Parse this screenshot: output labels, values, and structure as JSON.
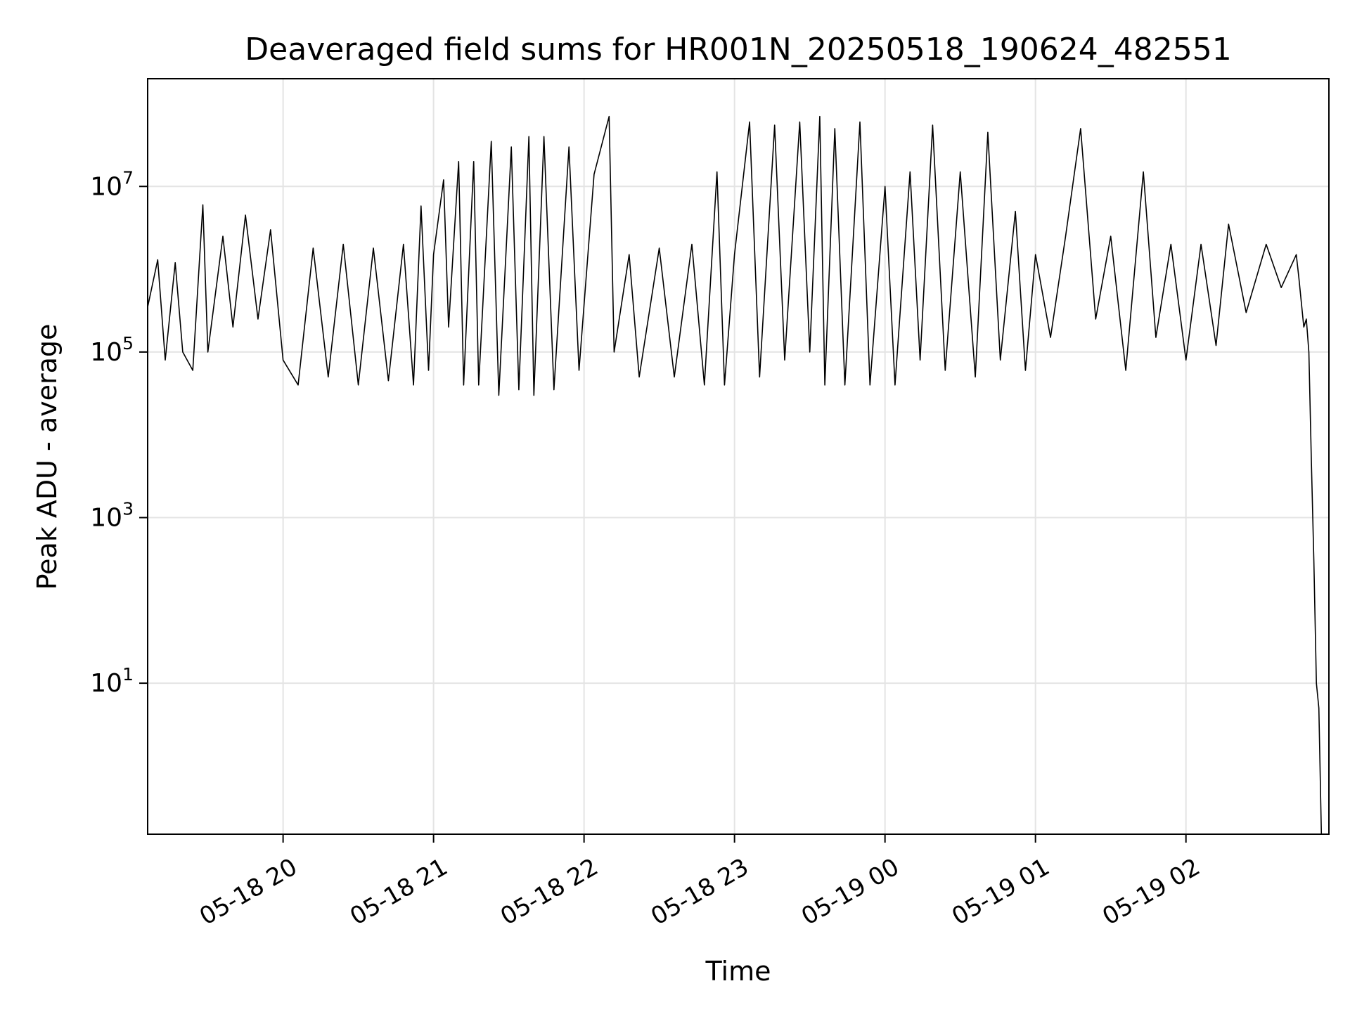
{
  "chart_data": {
    "type": "line",
    "title": "Deaveraged field sums for HR001N_20250518_190624_482551",
    "xlabel": "Time",
    "ylabel": "Peak ADU - average",
    "xlim": [
      "2025-05-18 19:06",
      "2025-05-19 02:57"
    ],
    "ylim": [
      0.15,
      200000000
    ],
    "yscale": "log",
    "grid": true,
    "legend": "none",
    "line_color": "#000000",
    "x_ticks": [
      {
        "label": "05-18 20",
        "value": "2025-05-18 20:00"
      },
      {
        "label": "05-18 21",
        "value": "2025-05-18 21:00"
      },
      {
        "label": "05-18 22",
        "value": "2025-05-18 22:00"
      },
      {
        "label": "05-18 23",
        "value": "2025-05-18 23:00"
      },
      {
        "label": "05-19 00",
        "value": "2025-05-19 00:00"
      },
      {
        "label": "05-19 01",
        "value": "2025-05-19 01:00"
      },
      {
        "label": "05-19 02",
        "value": "2025-05-19 02:00"
      }
    ],
    "y_ticks": [
      {
        "base": "10",
        "exp": "1",
        "value": 10
      },
      {
        "base": "10",
        "exp": "3",
        "value": 1000
      },
      {
        "base": "10",
        "exp": "5",
        "value": 100000
      },
      {
        "base": "10",
        "exp": "7",
        "value": 10000000
      }
    ],
    "series": [
      {
        "points": [
          [
            "2025-05-18 19:06",
            350000
          ],
          [
            "2025-05-18 19:10",
            1300000
          ],
          [
            "2025-05-18 19:13",
            80000
          ],
          [
            "2025-05-18 19:17",
            1200000
          ],
          [
            "2025-05-18 19:20",
            100000
          ],
          [
            "2025-05-18 19:24",
            60000
          ],
          [
            "2025-05-18 19:28",
            6000000
          ],
          [
            "2025-05-18 19:30",
            100000
          ],
          [
            "2025-05-18 19:36",
            2500000
          ],
          [
            "2025-05-18 19:40",
            200000
          ],
          [
            "2025-05-18 19:45",
            4500000
          ],
          [
            "2025-05-18 19:50",
            250000
          ],
          [
            "2025-05-18 19:55",
            3000000
          ],
          [
            "2025-05-18 20:00",
            80000
          ],
          [
            "2025-05-18 20:06",
            40000
          ],
          [
            "2025-05-18 20:12",
            1800000
          ],
          [
            "2025-05-18 20:18",
            50000
          ],
          [
            "2025-05-18 20:24",
            2000000
          ],
          [
            "2025-05-18 20:30",
            40000
          ],
          [
            "2025-05-18 20:36",
            1800000
          ],
          [
            "2025-05-18 20:42",
            45000
          ],
          [
            "2025-05-18 20:48",
            2000000
          ],
          [
            "2025-05-18 20:52",
            40000
          ],
          [
            "2025-05-18 20:55",
            5800000
          ],
          [
            "2025-05-18 20:58",
            60000
          ],
          [
            "2025-05-18 21:00",
            1500000
          ],
          [
            "2025-05-18 21:04",
            12000000
          ],
          [
            "2025-05-18 21:06",
            200000
          ],
          [
            "2025-05-18 21:10",
            20000000
          ],
          [
            "2025-05-18 21:12",
            40000
          ],
          [
            "2025-05-18 21:16",
            20000000
          ],
          [
            "2025-05-18 21:18",
            40000
          ],
          [
            "2025-05-18 21:23",
            35000000
          ],
          [
            "2025-05-18 21:26",
            30000
          ],
          [
            "2025-05-18 21:31",
            30000000
          ],
          [
            "2025-05-18 21:34",
            35000
          ],
          [
            "2025-05-18 21:38",
            40000000
          ],
          [
            "2025-05-18 21:40",
            30000
          ],
          [
            "2025-05-18 21:44",
            40000000
          ],
          [
            "2025-05-18 21:48",
            35000
          ],
          [
            "2025-05-18 21:54",
            30000000
          ],
          [
            "2025-05-18 21:58",
            60000
          ],
          [
            "2025-05-18 22:04",
            14000000
          ],
          [
            "2025-05-18 22:10",
            70000000
          ],
          [
            "2025-05-18 22:12",
            100000
          ],
          [
            "2025-05-18 22:18",
            1500000
          ],
          [
            "2025-05-18 22:22",
            50000
          ],
          [
            "2025-05-18 22:30",
            1800000
          ],
          [
            "2025-05-18 22:36",
            50000
          ],
          [
            "2025-05-18 22:43",
            2000000
          ],
          [
            "2025-05-18 22:48",
            40000
          ],
          [
            "2025-05-18 22:53",
            15000000
          ],
          [
            "2025-05-18 22:56",
            40000
          ],
          [
            "2025-05-18 23:00",
            1500000
          ],
          [
            "2025-05-18 23:06",
            60000000
          ],
          [
            "2025-05-18 23:10",
            50000
          ],
          [
            "2025-05-18 23:16",
            55000000
          ],
          [
            "2025-05-18 23:20",
            80000
          ],
          [
            "2025-05-18 23:26",
            60000000
          ],
          [
            "2025-05-18 23:30",
            100000
          ],
          [
            "2025-05-18 23:34",
            70000000
          ],
          [
            "2025-05-18 23:36",
            40000
          ],
          [
            "2025-05-18 23:40",
            50000000
          ],
          [
            "2025-05-18 23:44",
            40000
          ],
          [
            "2025-05-18 23:50",
            60000000
          ],
          [
            "2025-05-18 23:54",
            40000
          ],
          [
            "2025-05-19 00:00",
            10000000
          ],
          [
            "2025-05-19 00:04",
            40000
          ],
          [
            "2025-05-19 00:10",
            15000000
          ],
          [
            "2025-05-19 00:14",
            80000
          ],
          [
            "2025-05-19 00:19",
            55000000
          ],
          [
            "2025-05-19 00:24",
            60000
          ],
          [
            "2025-05-19 00:30",
            15000000
          ],
          [
            "2025-05-19 00:36",
            50000
          ],
          [
            "2025-05-19 00:41",
            45000000
          ],
          [
            "2025-05-19 00:46",
            80000
          ],
          [
            "2025-05-19 00:52",
            5000000
          ],
          [
            "2025-05-19 00:56",
            60000
          ],
          [
            "2025-05-19 01:00",
            1500000
          ],
          [
            "2025-05-19 01:06",
            150000
          ],
          [
            "2025-05-19 01:12",
            2500000
          ],
          [
            "2025-05-19 01:18",
            50000000
          ],
          [
            "2025-05-19 01:24",
            250000
          ],
          [
            "2025-05-19 01:30",
            2500000
          ],
          [
            "2025-05-19 01:36",
            60000
          ],
          [
            "2025-05-19 01:43",
            15000000
          ],
          [
            "2025-05-19 01:48",
            150000
          ],
          [
            "2025-05-19 01:54",
            2000000
          ],
          [
            "2025-05-19 02:00",
            80000
          ],
          [
            "2025-05-19 02:06",
            2000000
          ],
          [
            "2025-05-19 02:12",
            120000
          ],
          [
            "2025-05-19 02:17",
            3500000
          ],
          [
            "2025-05-19 02:24",
            300000
          ],
          [
            "2025-05-19 02:32",
            2000000
          ],
          [
            "2025-05-19 02:38",
            600000
          ],
          [
            "2025-05-19 02:44",
            1500000
          ],
          [
            "2025-05-19 02:45",
            800000
          ],
          [
            "2025-05-19 02:47",
            200000
          ],
          [
            "2025-05-19 02:48",
            250000
          ],
          [
            "2025-05-19 02:49",
            100000
          ],
          [
            "2025-05-19 02:50",
            5000
          ],
          [
            "2025-05-19 02:51",
            300
          ],
          [
            "2025-05-19 02:52",
            10
          ],
          [
            "2025-05-19 02:53",
            5
          ],
          [
            "2025-05-19 02:54",
            0.1
          ]
        ]
      }
    ]
  }
}
